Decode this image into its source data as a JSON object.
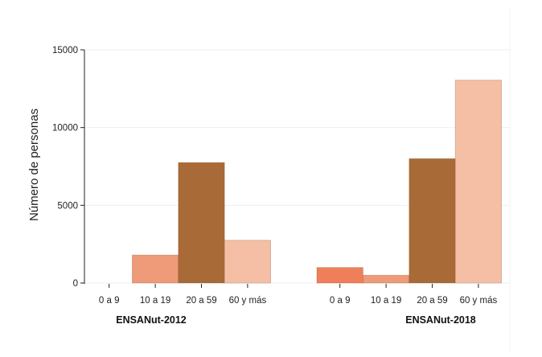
{
  "chart_data": {
    "type": "bar",
    "title": "",
    "xlabel": "",
    "ylabel": "Número de personas",
    "ylim": [
      0,
      15000
    ],
    "yticks": [
      0,
      5000,
      10000,
      15000
    ],
    "grid": true,
    "groups": [
      {
        "name": "ENSANut-2012",
        "categories": [
          "0 a 9",
          "10 a 19",
          "20 a 59",
          "60 y más"
        ],
        "values": [
          0,
          1800,
          7750,
          2750
        ],
        "colors": [
          "#ef7f5a",
          "#ef9a78",
          "#a86a37",
          "#f4bfa5"
        ]
      },
      {
        "name": "ENSANut-2018",
        "categories": [
          "0 a 9",
          "10 a 19",
          "20 a 59",
          "60 y más"
        ],
        "values": [
          1000,
          500,
          8000,
          13050
        ],
        "colors": [
          "#ef7f5a",
          "#ef9a78",
          "#a86a37",
          "#f4bfa5"
        ]
      }
    ]
  }
}
